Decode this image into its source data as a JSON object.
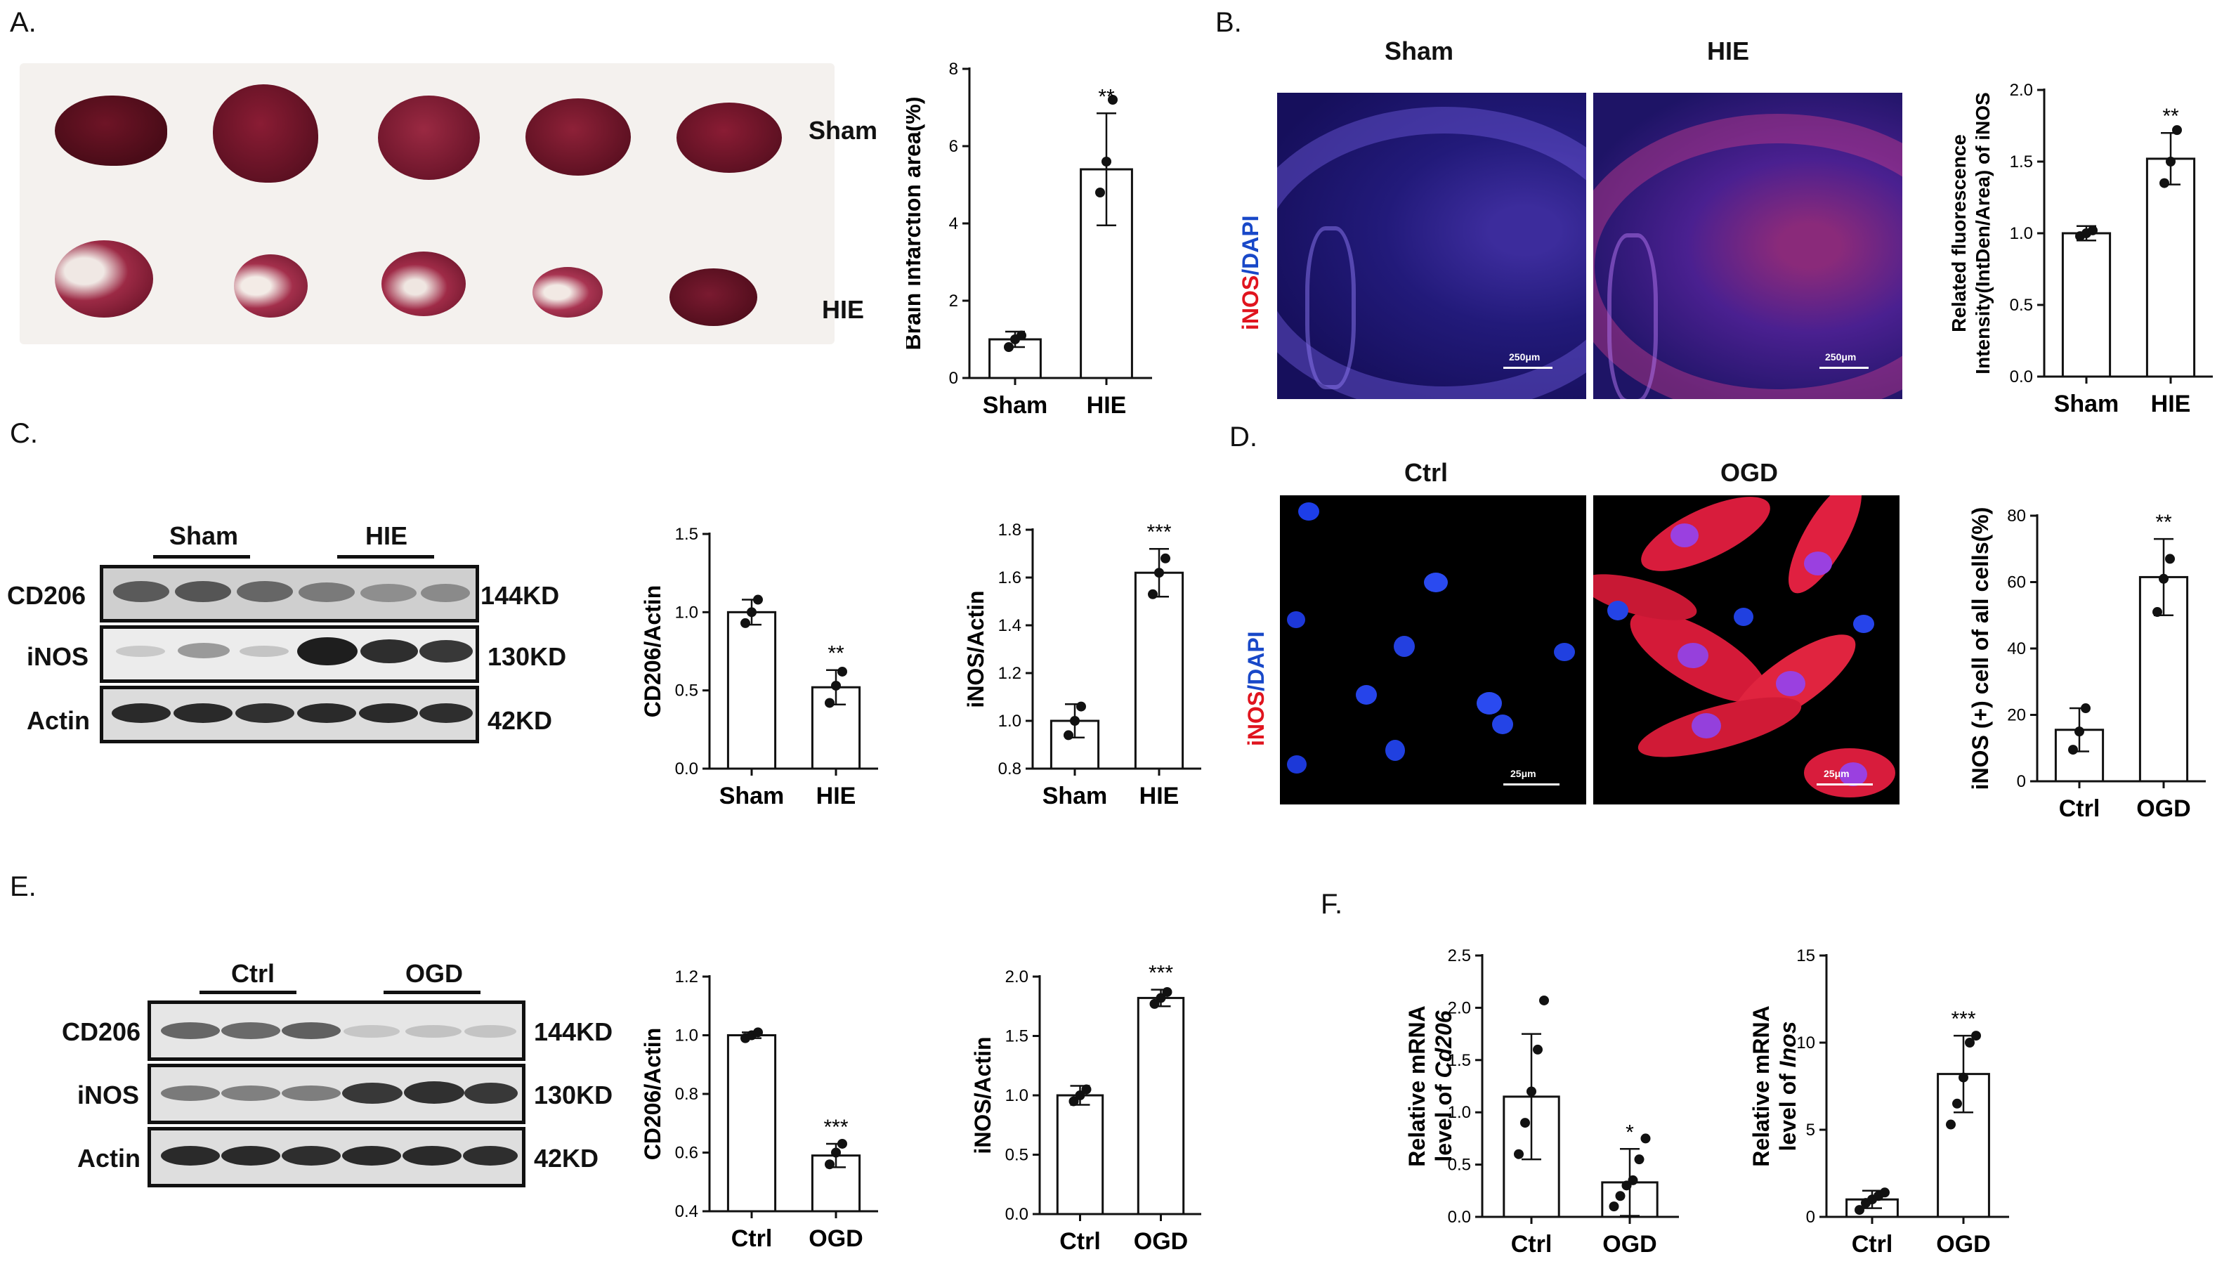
{
  "panels": {
    "A": {
      "label": "A.",
      "row_labels": [
        "Sham",
        "HIE"
      ],
      "chart_data": {
        "type": "bar",
        "categories": [
          "Sham",
          "HIE"
        ],
        "values": [
          1.0,
          5.4
        ],
        "errors": [
          0.2,
          1.45
        ],
        "points": [
          [
            0.8,
            1.0,
            1.1
          ],
          [
            4.8,
            5.6,
            7.2
          ]
        ],
        "ylabel": "Brain infarction area(%)",
        "ylim": [
          0,
          8
        ],
        "yticks": [
          "0",
          "2",
          "4",
          "6",
          "8"
        ],
        "yticks_values": [
          0,
          2,
          4,
          6,
          8
        ],
        "significance": [
          "",
          "**"
        ]
      }
    },
    "B": {
      "label": "B.",
      "image_titles": [
        "Sham",
        "HIE"
      ],
      "stain": {
        "red": "iNOS",
        "sep": "/",
        "blue": "DAPI"
      },
      "scale": "250μm",
      "chart_data": {
        "type": "bar",
        "categories": [
          "Sham",
          "HIE"
        ],
        "values": [
          1.0,
          1.52
        ],
        "errors": [
          0.05,
          0.18
        ],
        "points": [
          [
            0.98,
            1.0,
            1.02
          ],
          [
            1.35,
            1.5,
            1.72
          ]
        ],
        "ylabel": "Related fluorescence Intensity(IntDen/Area) of iNOS",
        "ylim": [
          0,
          2.0
        ],
        "yticks": [
          "0.0",
          "0.5",
          "1.0",
          "1.5",
          "2.0"
        ],
        "yticks_values": [
          0,
          0.5,
          1.0,
          1.5,
          2.0
        ],
        "significance": [
          "",
          "**"
        ]
      }
    },
    "C": {
      "label": "C.",
      "group_labels": [
        "Sham",
        "HIE"
      ],
      "proteins": [
        "CD206",
        "iNOS",
        "Actin"
      ],
      "sizes": [
        "144KD",
        "130KD",
        "42KD"
      ],
      "charts": [
        {
          "type": "bar",
          "categories": [
            "Sham",
            "HIE"
          ],
          "values": [
            1.0,
            0.52
          ],
          "errors": [
            0.08,
            0.11
          ],
          "points": [
            [
              0.93,
              1.0,
              1.08
            ],
            [
              0.42,
              0.53,
              0.62
            ]
          ],
          "ylabel": "CD206/Actin",
          "ylim": [
            0,
            1.5
          ],
          "yticks": [
            "0.0",
            "0.5",
            "1.0",
            "1.5"
          ],
          "yticks_values": [
            0,
            0.5,
            1.0,
            1.5
          ],
          "significance": [
            "",
            "**"
          ]
        },
        {
          "type": "bar",
          "categories": [
            "Sham",
            "HIE"
          ],
          "values": [
            1.0,
            1.62
          ],
          "errors": [
            0.07,
            0.1
          ],
          "points": [
            [
              0.94,
              1.0,
              1.06
            ],
            [
              1.53,
              1.62,
              1.68
            ]
          ],
          "ylabel": "iNOS/Actin",
          "ylim": [
            0.8,
            1.8
          ],
          "yticks": [
            "0.8",
            "1.0",
            "1.2",
            "1.4",
            "1.6",
            "1.8"
          ],
          "yticks_values": [
            0.8,
            1.0,
            1.2,
            1.4,
            1.6,
            1.8
          ],
          "significance": [
            "",
            "***"
          ]
        }
      ]
    },
    "D": {
      "label": "D.",
      "image_titles": [
        "Ctrl",
        "OGD"
      ],
      "stain": {
        "red": "iNOS",
        "sep": "/",
        "blue": "DAPI"
      },
      "scale": "25μm",
      "chart_data": {
        "type": "bar",
        "categories": [
          "Ctrl",
          "OGD"
        ],
        "values": [
          15.5,
          61.5
        ],
        "errors": [
          6.5,
          11.5
        ],
        "points": [
          [
            9.5,
            15,
            22
          ],
          [
            51,
            61,
            67
          ]
        ],
        "ylabel": "iNOS (+) cell of all cells(%)",
        "ylim": [
          0,
          80
        ],
        "yticks": [
          "0",
          "20",
          "40",
          "60",
          "80"
        ],
        "yticks_values": [
          0,
          20,
          40,
          60,
          80
        ],
        "significance": [
          "",
          "**"
        ]
      }
    },
    "E": {
      "label": "E.",
      "group_labels": [
        "Ctrl",
        "OGD"
      ],
      "proteins": [
        "CD206",
        "iNOS",
        "Actin"
      ],
      "sizes": [
        "144KD",
        "130KD",
        "42KD"
      ],
      "charts": [
        {
          "type": "bar",
          "categories": [
            "Ctrl",
            "OGD"
          ],
          "values": [
            1.0,
            0.59
          ],
          "errors": [
            0.01,
            0.04
          ],
          "points": [
            [
              0.99,
              1.0,
              1.01
            ],
            [
              0.56,
              0.6,
              0.63
            ]
          ],
          "ylabel": "CD206/Actin",
          "ylim": [
            0.4,
            1.2
          ],
          "yticks": [
            "0.4",
            "0.6",
            "0.8",
            "1.0",
            "1.2"
          ],
          "yticks_values": [
            0.4,
            0.6,
            0.8,
            1.0,
            1.2
          ],
          "significance": [
            "",
            "***"
          ]
        },
        {
          "type": "bar",
          "categories": [
            "Ctrl",
            "OGD"
          ],
          "values": [
            1.0,
            1.82
          ],
          "errors": [
            0.08,
            0.07
          ],
          "points": [
            [
              0.95,
              1.0,
              1.05
            ],
            [
              1.77,
              1.82,
              1.87
            ]
          ],
          "ylabel": "iNOS/Actin",
          "ylim": [
            0,
            2.0
          ],
          "yticks": [
            "0.0",
            "0.5",
            "1.0",
            "1.5",
            "2.0"
          ],
          "yticks_values": [
            0,
            0.5,
            1.0,
            1.5,
            2.0
          ],
          "significance": [
            "",
            "***"
          ]
        }
      ]
    },
    "F": {
      "label": "F.",
      "charts": [
        {
          "type": "bar",
          "categories": [
            "Ctrl",
            "OGD"
          ],
          "values": [
            1.15,
            0.33
          ],
          "errors": [
            0.6,
            0.32
          ],
          "points": [
            [
              0.6,
              0.9,
              1.2,
              1.6,
              2.07
            ],
            [
              0.1,
              0.2,
              0.3,
              0.35,
              0.55,
              0.75
            ]
          ],
          "ylabel_prefix": "Relative mRNA",
          "ylabel_suffix": "level of",
          "ylabel_gene": "Cd206",
          "ylim": [
            0,
            2.5
          ],
          "yticks": [
            "0.0",
            "0.5",
            "1.0",
            "1.5",
            "2.0",
            "2.5"
          ],
          "yticks_values": [
            0,
            0.5,
            1.0,
            1.5,
            2.0,
            2.5
          ],
          "significance": [
            "",
            "*"
          ]
        },
        {
          "type": "bar",
          "categories": [
            "Ctrl",
            "OGD"
          ],
          "values": [
            1.0,
            8.2
          ],
          "errors": [
            0.5,
            2.2
          ],
          "points": [
            [
              0.4,
              0.8,
              1.0,
              1.2,
              1.4
            ],
            [
              5.3,
              6.5,
              8.0,
              10.0,
              10.4
            ]
          ],
          "ylabel_prefix": "Relative mRNA",
          "ylabel_suffix": "level of",
          "ylabel_gene": "Inos",
          "ylim": [
            0,
            15
          ],
          "yticks": [
            "0",
            "5",
            "10",
            "15"
          ],
          "yticks_values": [
            0,
            5,
            10,
            15
          ],
          "significance": [
            "",
            "***"
          ]
        }
      ]
    }
  }
}
